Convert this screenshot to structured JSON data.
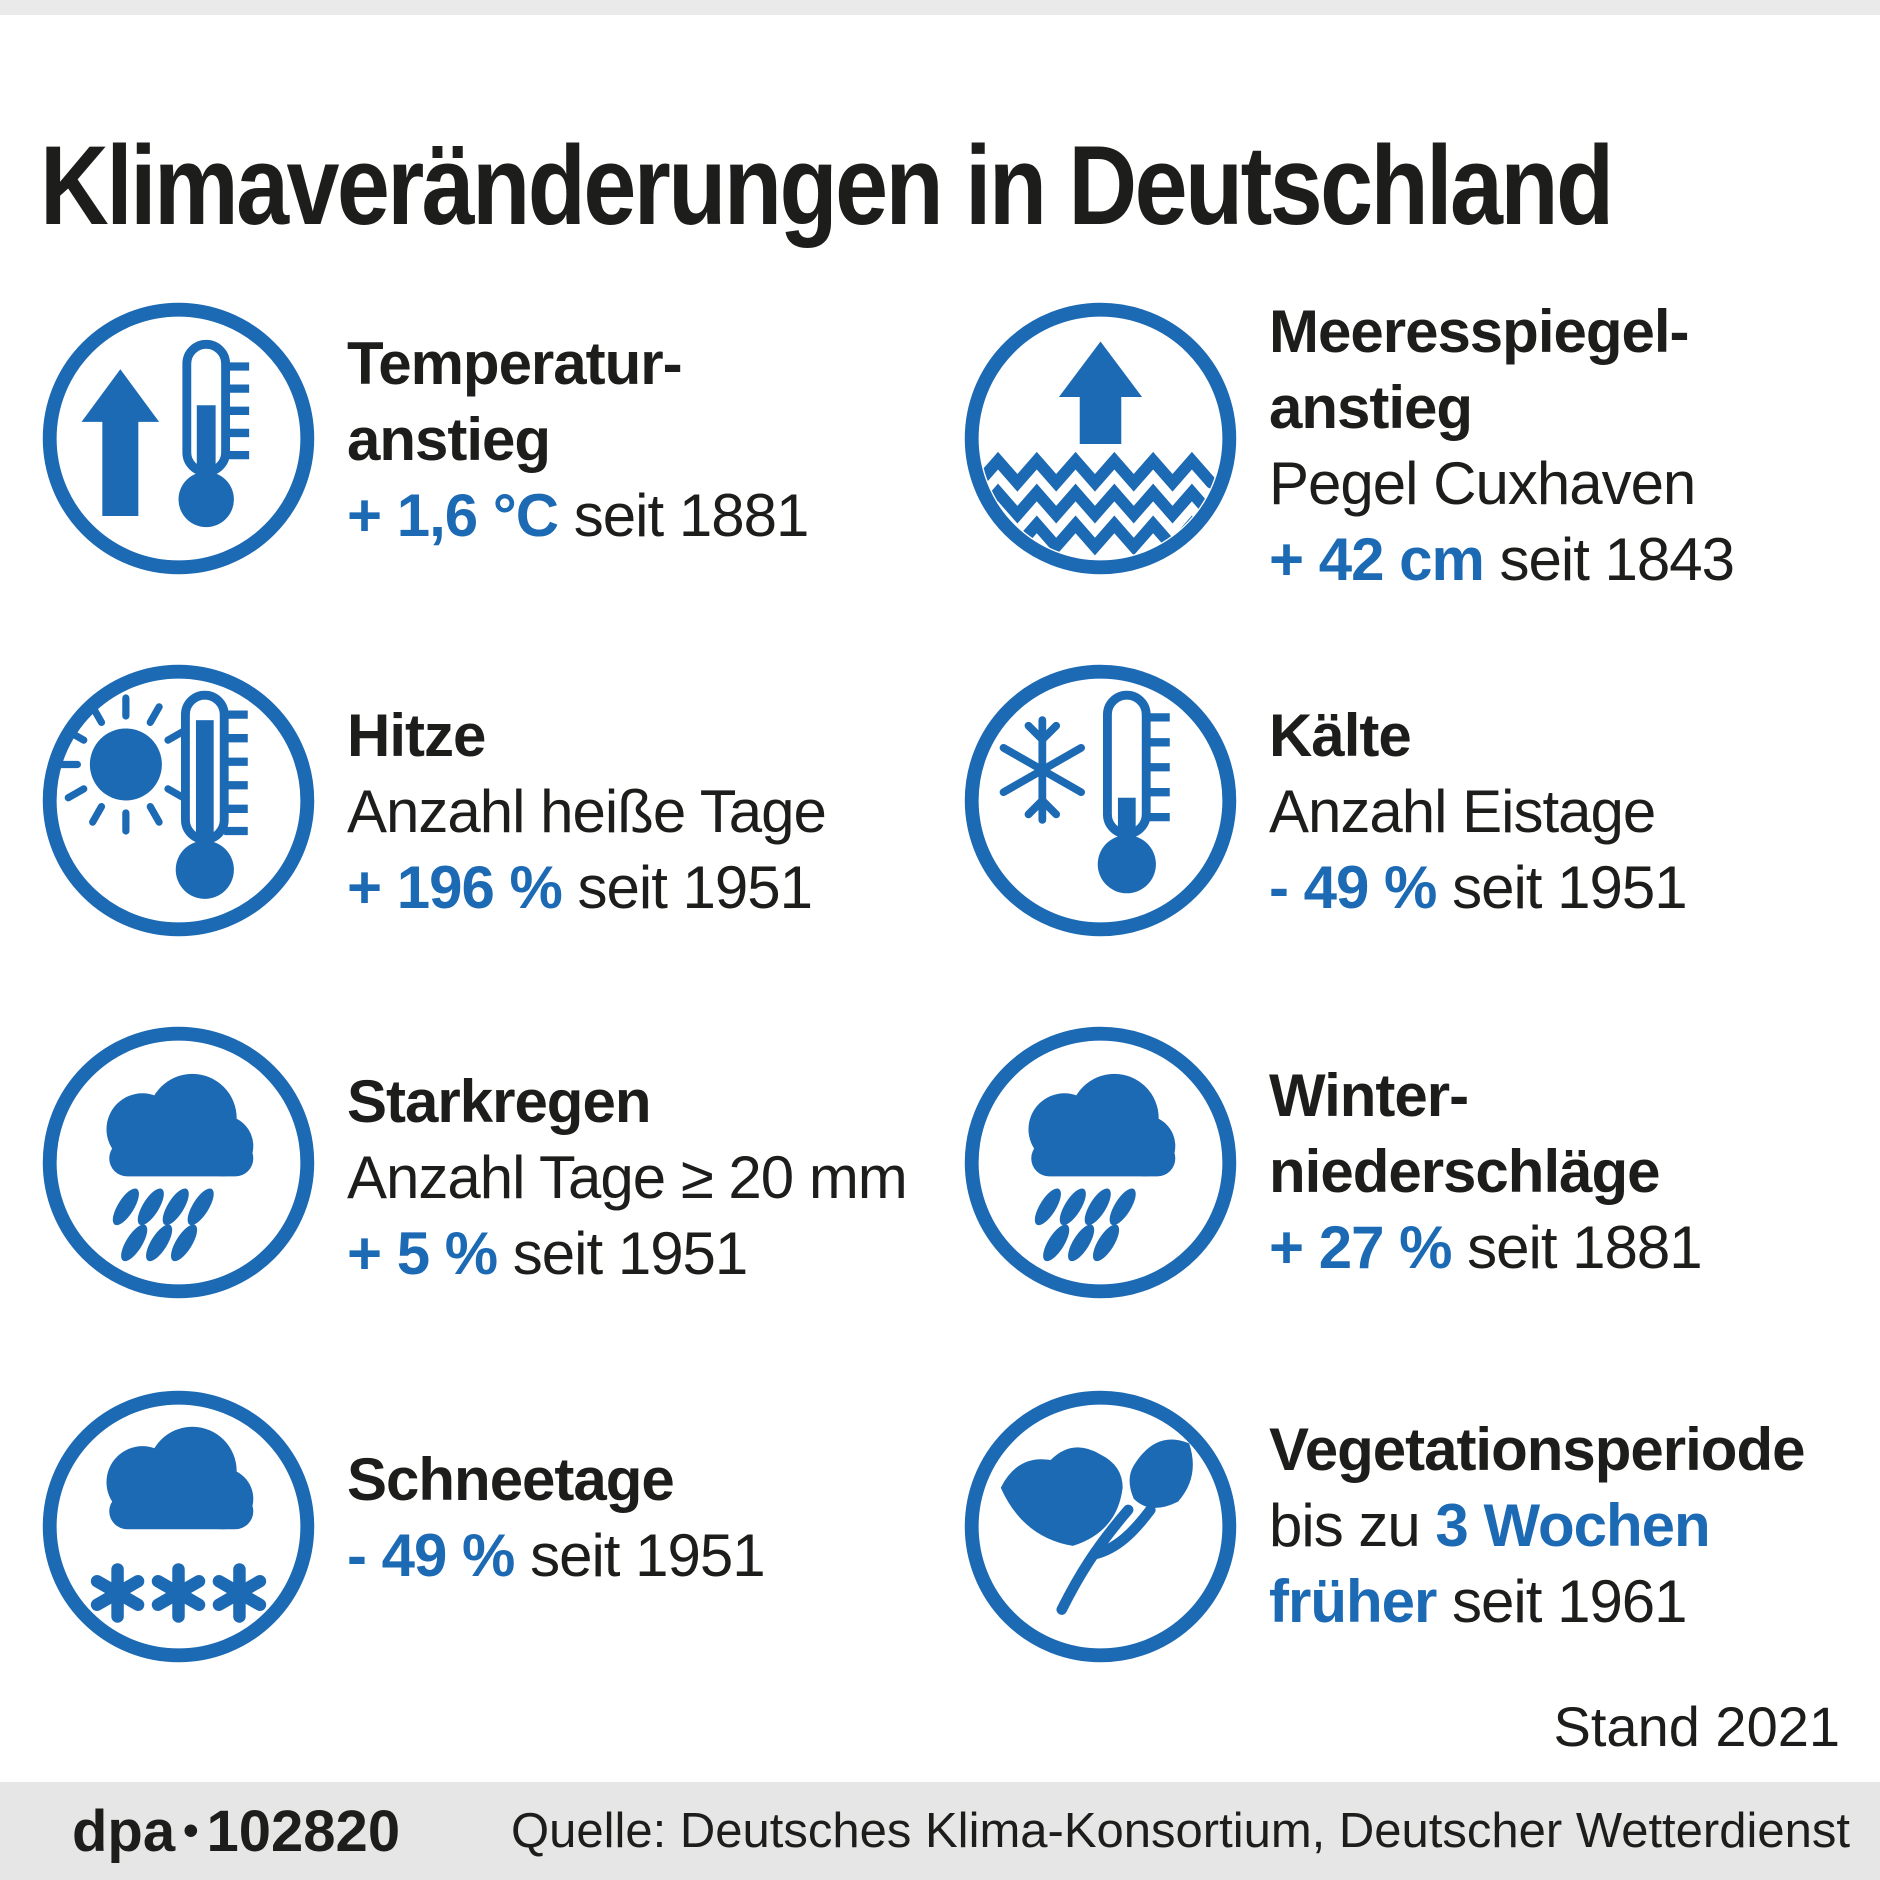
{
  "header": {
    "title": "Klimaveränderungen in Deutschland"
  },
  "status": {
    "stand": "Stand 2021"
  },
  "footer": {
    "brand": "dpa",
    "separator": "•",
    "graphic_id": "102820",
    "source": "Quelle: Deutsches Klima-Konsortium, Deutscher Wetterdienst"
  },
  "colors": {
    "accent": "#1c69b4",
    "ink": "#1d1d1b",
    "footer_bar": "#e6e6e6",
    "top_strip": "#eaeaea"
  },
  "items": [
    {
      "id": "temperaturanstieg",
      "icon": "thermometer-rise-icon",
      "lines": [
        [
          {
            "t": "Temperatur-",
            "s": "b"
          }
        ],
        [
          {
            "t": "anstieg",
            "s": "b"
          }
        ],
        [
          {
            "t": "+ 1,6 °C",
            "s": "v"
          },
          {
            "t": " seit 1881",
            "s": "r"
          }
        ]
      ]
    },
    {
      "id": "meeresspiegelanstieg",
      "icon": "sea-level-rise-icon",
      "lines": [
        [
          {
            "t": "Meeresspiegel-",
            "s": "b"
          }
        ],
        [
          {
            "t": "anstieg",
            "s": "b"
          }
        ],
        [
          {
            "t": "Pegel Cuxhaven",
            "s": "r"
          }
        ],
        [
          {
            "t": "+ 42 cm",
            "s": "v"
          },
          {
            "t": " seit 1843",
            "s": "r"
          }
        ]
      ]
    },
    {
      "id": "hitze",
      "icon": "sun-thermometer-icon",
      "lines": [
        [
          {
            "t": "Hitze",
            "s": "b"
          }
        ],
        [
          {
            "t": "Anzahl heiße Tage",
            "s": "r"
          }
        ],
        [
          {
            "t": "+ 196 %",
            "s": "v"
          },
          {
            "t": " seit 1951",
            "s": "r"
          }
        ]
      ]
    },
    {
      "id": "kaelte",
      "icon": "snowflake-thermometer-icon",
      "lines": [
        [
          {
            "t": "Kälte",
            "s": "b"
          }
        ],
        [
          {
            "t": "Anzahl Eistage",
            "s": "r"
          }
        ],
        [
          {
            "t": "- 49 %",
            "s": "v"
          },
          {
            "t": " seit 1951",
            "s": "r"
          }
        ]
      ]
    },
    {
      "id": "starkregen",
      "icon": "rain-cloud-icon",
      "lines": [
        [
          {
            "t": "Starkregen",
            "s": "b"
          }
        ],
        [
          {
            "t": "Anzahl Tage ≥ 20 mm",
            "s": "r"
          }
        ],
        [
          {
            "t": "+ 5 %",
            "s": "v"
          },
          {
            "t": " seit 1951",
            "s": "r"
          }
        ]
      ]
    },
    {
      "id": "winterniederschlaege",
      "icon": "rain-cloud-icon",
      "lines": [
        [
          {
            "t": "Winter-",
            "s": "b"
          }
        ],
        [
          {
            "t": "niederschläge",
            "s": "b"
          }
        ],
        [
          {
            "t": "+ 27 %",
            "s": "v"
          },
          {
            "t": " seit 1881",
            "s": "r"
          }
        ]
      ]
    },
    {
      "id": "schneetage",
      "icon": "snow-cloud-icon",
      "lines": [
        [
          {
            "t": "Schneetage",
            "s": "b"
          }
        ],
        [
          {
            "t": "- 49 %",
            "s": "v"
          },
          {
            "t": " seit 1951",
            "s": "r"
          }
        ]
      ]
    },
    {
      "id": "vegetationsperiode",
      "icon": "sprout-leaves-icon",
      "lines": [
        [
          {
            "t": "Vegetationsperiode",
            "s": "b"
          }
        ],
        [
          {
            "t": "bis zu ",
            "s": "r"
          },
          {
            "t": "3 Wochen",
            "s": "v"
          }
        ],
        [
          {
            "t": "früher",
            "s": "v"
          },
          {
            "t": " seit 1961",
            "s": "r"
          }
        ]
      ]
    }
  ]
}
